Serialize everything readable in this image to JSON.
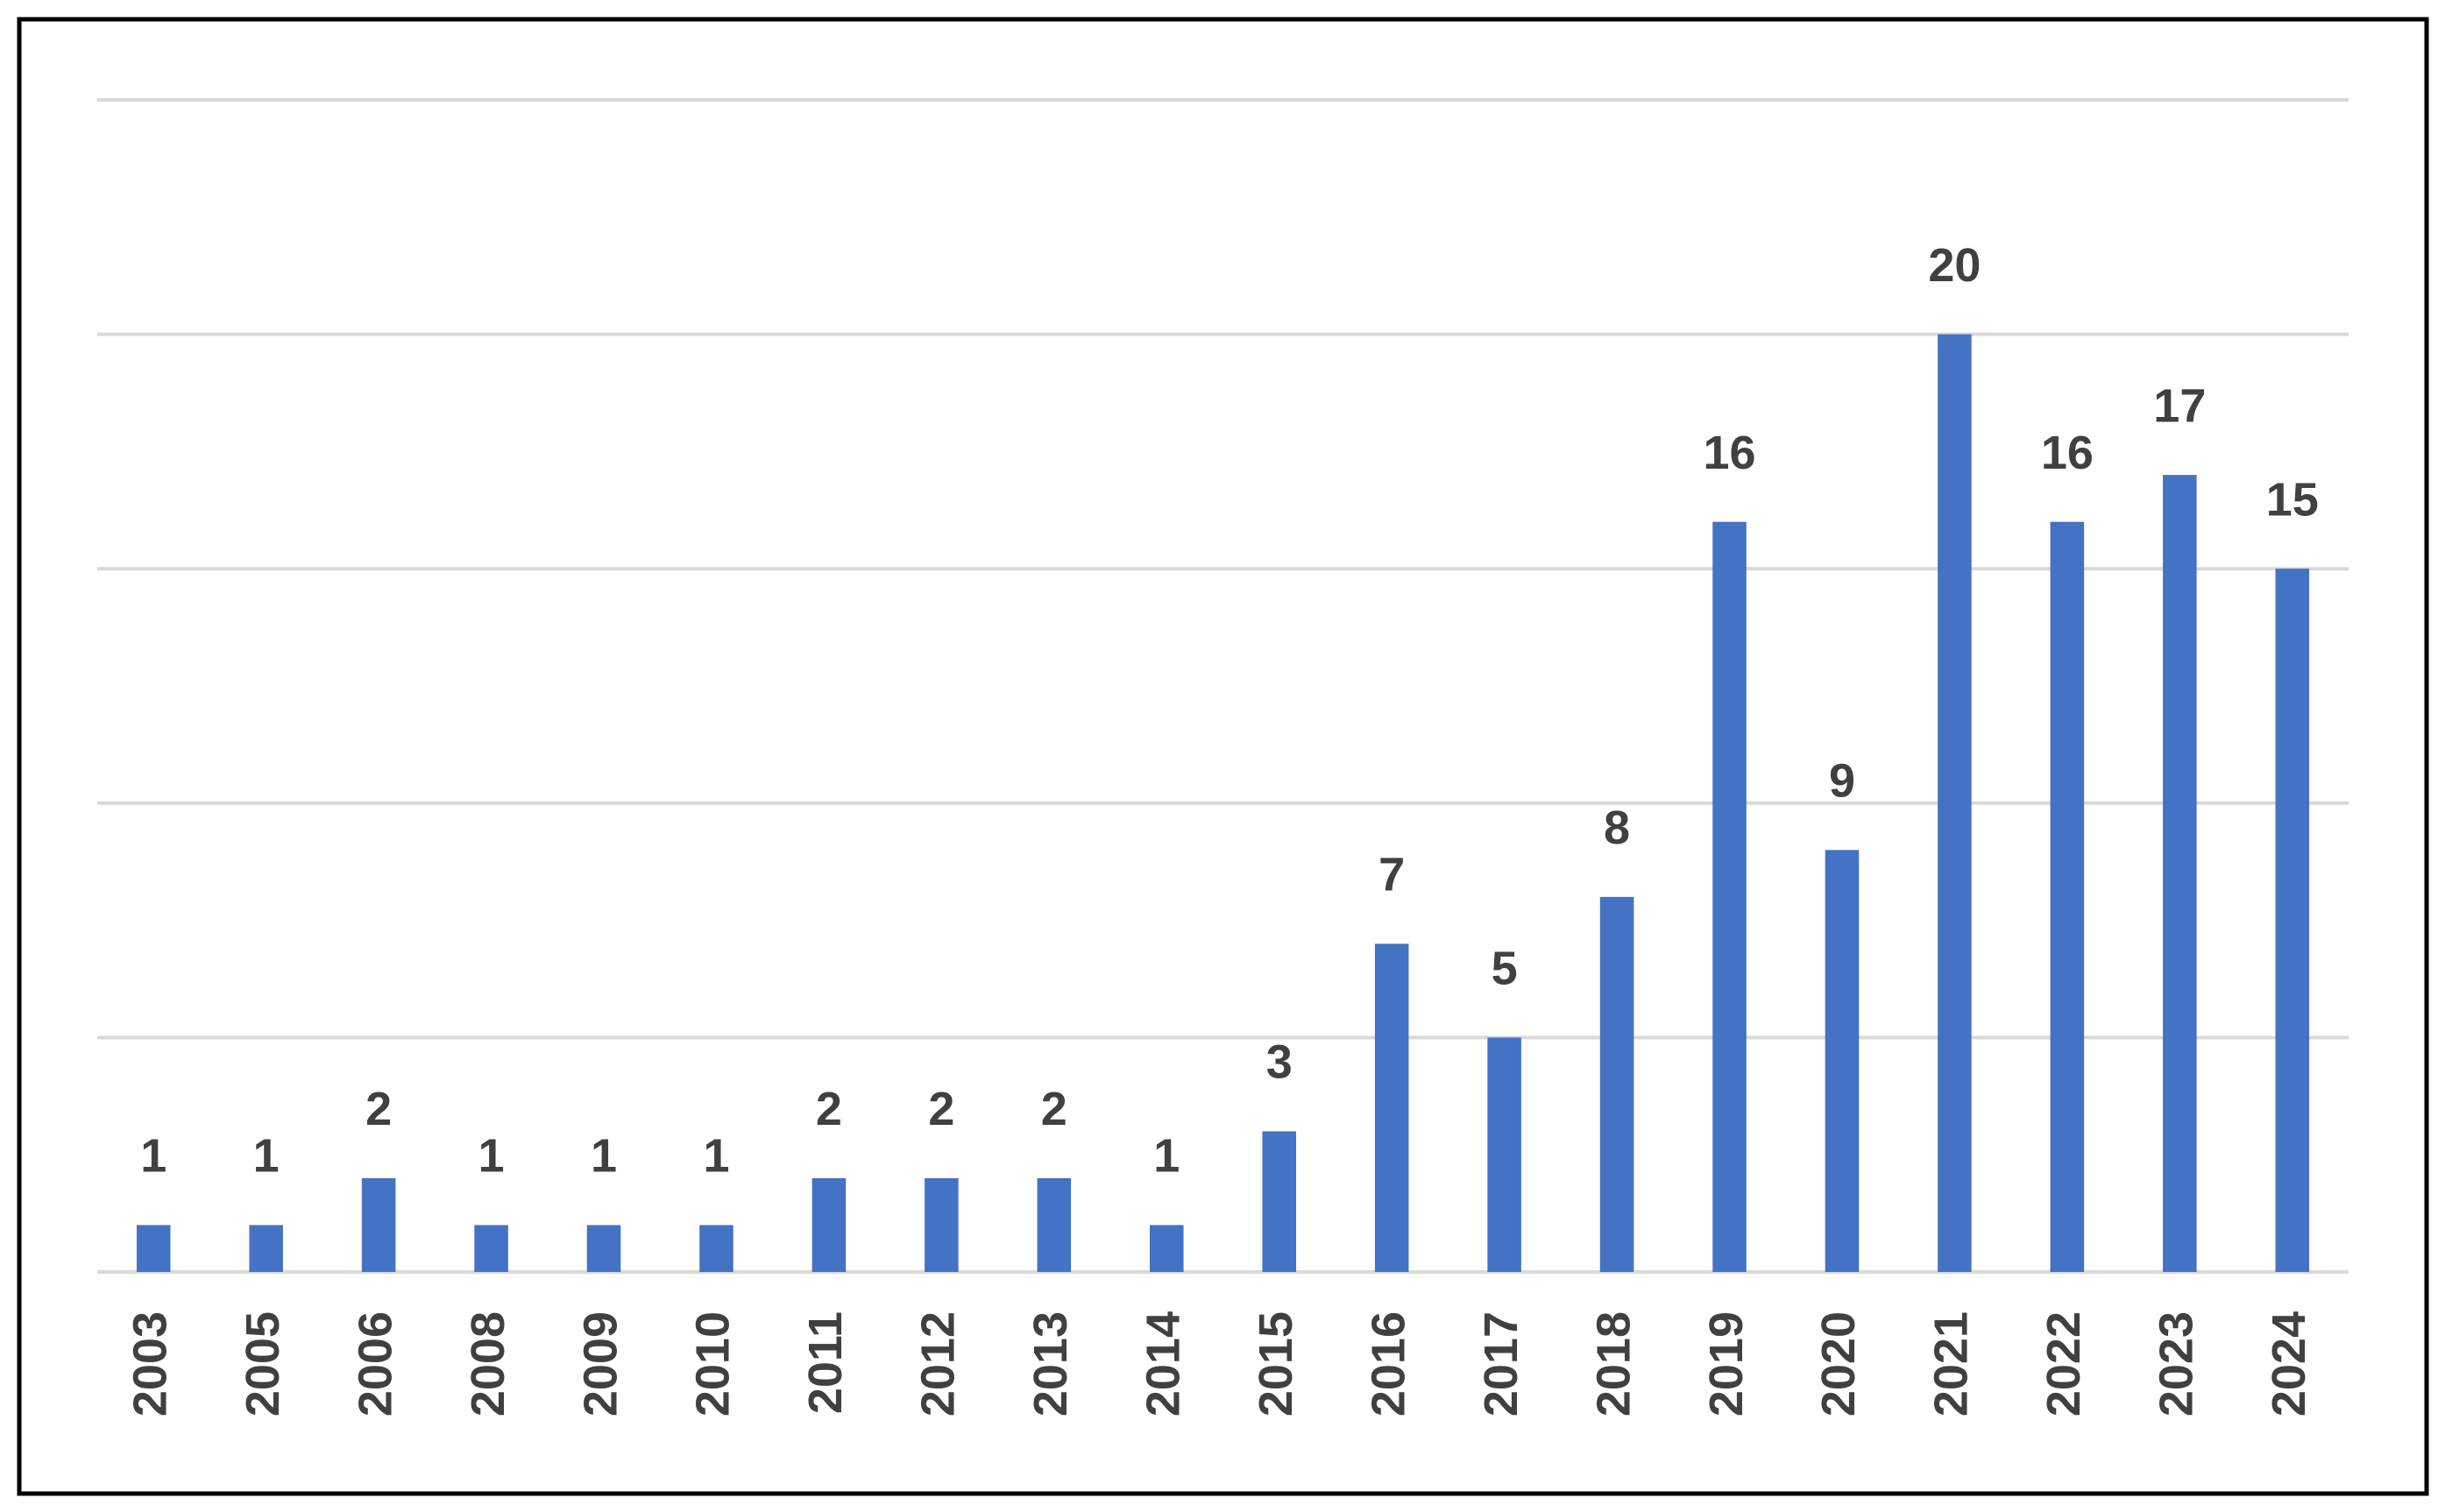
{
  "chart_data": {
    "type": "bar",
    "categories": [
      "2003",
      "2005",
      "2006",
      "2008",
      "2009",
      "2010",
      "2011",
      "2012",
      "2013",
      "2014",
      "2015",
      "2016",
      "2017",
      "2018",
      "2019",
      "2020",
      "2021",
      "2022",
      "2023",
      "2024"
    ],
    "values": [
      1,
      1,
      2,
      1,
      1,
      1,
      2,
      2,
      2,
      1,
      3,
      7,
      5,
      8,
      16,
      9,
      20,
      16,
      17,
      15
    ],
    "color": "#4472c4",
    "ylim": [
      0,
      25
    ],
    "yticks": [
      0,
      5,
      10,
      15,
      20,
      25
    ],
    "grid": true
  }
}
